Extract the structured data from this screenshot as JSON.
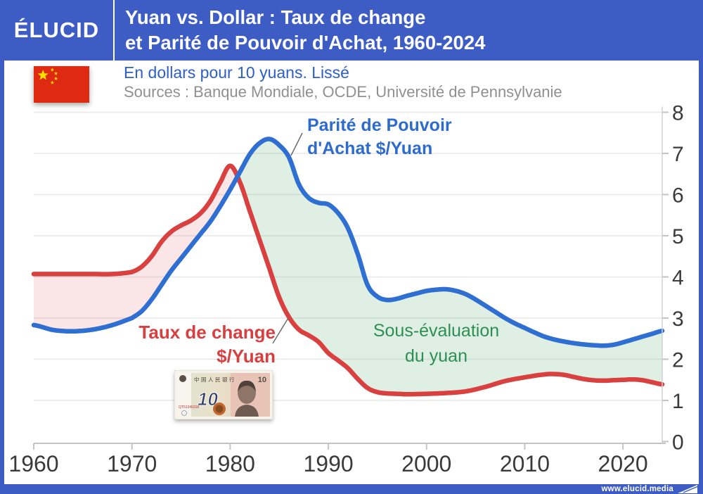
{
  "header": {
    "logo": "ÉLUCID",
    "title_line1": "Yuan vs. Dollar : Taux de change",
    "title_line2": "et Parité de Pouvoir d'Achat, 1960-2024"
  },
  "subtitle": {
    "line1": "En dollars pour 10 yuans. Lissé",
    "sources": "Sources : Banque Mondiale, OCDE, Université de Pennsylvanie"
  },
  "annotations": {
    "ppp": {
      "line1": "Parité de Pouvoir",
      "line2": "d'Achat $/Yuan"
    },
    "exchange": {
      "line1": "Taux de change",
      "line2": "$/Yuan"
    },
    "undervaluation": {
      "line1": "Sous-évaluation",
      "line2": "du yuan"
    }
  },
  "banknote": {
    "denomination": "10",
    "bank_name": "中国人民银行",
    "serial": "QT51346318"
  },
  "footer": {
    "url": "www.elucid.media"
  },
  "colors": {
    "brand_blue": "#3d5dc4",
    "ppp_line": "#2f6fd2",
    "exchange_line": "#d94040",
    "green_fill": "rgba(85,170,105,0.19)",
    "pink_fill": "rgba(217,64,64,0.13)",
    "grid": "#e8e8e8",
    "axis": "#c4c4c4",
    "tick_text": "#3a3a3a",
    "leader": "#666666"
  },
  "chart_data": {
    "type": "line",
    "title": "Yuan vs. Dollar : Taux de change et Parité de Pouvoir d'Achat, 1960-2024",
    "unit": "dollars pour 10 yuans (lissé)",
    "x_range": [
      1960,
      2024
    ],
    "y_range": [
      0,
      8
    ],
    "x_ticks": [
      1960,
      1970,
      1980,
      1990,
      2000,
      2010,
      2020
    ],
    "y_ticks": [
      0,
      1,
      2,
      3,
      4,
      5,
      6,
      7,
      8
    ],
    "grid": true,
    "legend_position": "inline-annotations",
    "series": [
      {
        "name": "Taux de change $/Yuan",
        "color": "#d94040",
        "points": [
          [
            1960,
            4.07
          ],
          [
            1962,
            4.07
          ],
          [
            1964,
            4.07
          ],
          [
            1966,
            4.07
          ],
          [
            1968,
            4.07
          ],
          [
            1970,
            4.12
          ],
          [
            1971,
            4.25
          ],
          [
            1972,
            4.5
          ],
          [
            1973,
            4.85
          ],
          [
            1974,
            5.1
          ],
          [
            1975,
            5.25
          ],
          [
            1976,
            5.37
          ],
          [
            1977,
            5.55
          ],
          [
            1978,
            5.85
          ],
          [
            1979,
            6.3
          ],
          [
            1980,
            6.7
          ],
          [
            1981,
            6.3
          ],
          [
            1982,
            5.6
          ],
          [
            1983,
            4.9
          ],
          [
            1984,
            4.2
          ],
          [
            1985,
            3.5
          ],
          [
            1986,
            3.02
          ],
          [
            1987,
            2.72
          ],
          [
            1988,
            2.58
          ],
          [
            1989,
            2.42
          ],
          [
            1990,
            2.15
          ],
          [
            1991,
            1.97
          ],
          [
            1992,
            1.78
          ],
          [
            1993,
            1.52
          ],
          [
            1994,
            1.3
          ],
          [
            1995,
            1.2
          ],
          [
            1996,
            1.17
          ],
          [
            1997,
            1.16
          ],
          [
            1998,
            1.15
          ],
          [
            2000,
            1.16
          ],
          [
            2002,
            1.18
          ],
          [
            2004,
            1.22
          ],
          [
            2006,
            1.33
          ],
          [
            2008,
            1.47
          ],
          [
            2010,
            1.56
          ],
          [
            2012,
            1.63
          ],
          [
            2013,
            1.64
          ],
          [
            2014,
            1.62
          ],
          [
            2015,
            1.57
          ],
          [
            2016,
            1.52
          ],
          [
            2017,
            1.49
          ],
          [
            2018,
            1.48
          ],
          [
            2019,
            1.49
          ],
          [
            2020,
            1.5
          ],
          [
            2021,
            1.51
          ],
          [
            2022,
            1.49
          ],
          [
            2023,
            1.44
          ],
          [
            2024,
            1.39
          ]
        ]
      },
      {
        "name": "Parité de Pouvoir d'Achat $/Yuan",
        "color": "#2f6fd2",
        "points": [
          [
            1960,
            2.83
          ],
          [
            1962,
            2.71
          ],
          [
            1964,
            2.68
          ],
          [
            1966,
            2.72
          ],
          [
            1968,
            2.83
          ],
          [
            1970,
            3.0
          ],
          [
            1971,
            3.17
          ],
          [
            1972,
            3.45
          ],
          [
            1973,
            3.8
          ],
          [
            1974,
            4.15
          ],
          [
            1975,
            4.45
          ],
          [
            1976,
            4.75
          ],
          [
            1977,
            5.05
          ],
          [
            1978,
            5.35
          ],
          [
            1979,
            5.72
          ],
          [
            1980,
            6.12
          ],
          [
            1981,
            6.55
          ],
          [
            1982,
            6.98
          ],
          [
            1983,
            7.25
          ],
          [
            1984,
            7.35
          ],
          [
            1985,
            7.2
          ],
          [
            1986,
            6.9
          ],
          [
            1987,
            6.25
          ],
          [
            1988,
            5.92
          ],
          [
            1989,
            5.8
          ],
          [
            1990,
            5.76
          ],
          [
            1991,
            5.55
          ],
          [
            1992,
            5.18
          ],
          [
            1993,
            4.55
          ],
          [
            1994,
            3.8
          ],
          [
            1995,
            3.52
          ],
          [
            1996,
            3.44
          ],
          [
            1997,
            3.47
          ],
          [
            1998,
            3.54
          ],
          [
            1999,
            3.6
          ],
          [
            2000,
            3.66
          ],
          [
            2001,
            3.69
          ],
          [
            2002,
            3.7
          ],
          [
            2003,
            3.66
          ],
          [
            2004,
            3.58
          ],
          [
            2005,
            3.45
          ],
          [
            2006,
            3.3
          ],
          [
            2007,
            3.15
          ],
          [
            2008,
            3.0
          ],
          [
            2009,
            2.87
          ],
          [
            2010,
            2.76
          ],
          [
            2011,
            2.65
          ],
          [
            2012,
            2.55
          ],
          [
            2013,
            2.48
          ],
          [
            2014,
            2.43
          ],
          [
            2015,
            2.39
          ],
          [
            2016,
            2.36
          ],
          [
            2017,
            2.34
          ],
          [
            2018,
            2.33
          ],
          [
            2019,
            2.35
          ],
          [
            2020,
            2.41
          ],
          [
            2021,
            2.48
          ],
          [
            2022,
            2.55
          ],
          [
            2023,
            2.62
          ],
          [
            2024,
            2.69
          ]
        ]
      }
    ],
    "shaded_regions": [
      {
        "label": "",
        "between": [
          "Taux de change $/Yuan",
          "Parité de Pouvoir d'Achat $/Yuan"
        ],
        "from": 1960,
        "to": 1980.6,
        "fill": "pink"
      },
      {
        "label": "Sous-évaluation du yuan",
        "between": [
          "Parité de Pouvoir d'Achat $/Yuan",
          "Taux de change $/Yuan"
        ],
        "from": 1980.6,
        "to": 2024,
        "fill": "green"
      }
    ]
  }
}
